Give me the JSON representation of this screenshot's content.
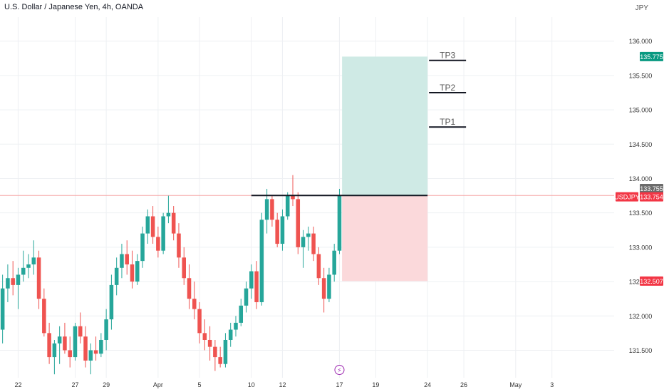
{
  "header": {
    "title": "U.S. Dollar / Japanese Yen, 4h, OANDA",
    "currency": "JPY"
  },
  "colors": {
    "up": "#26a69a",
    "down": "#ef5350",
    "grid": "#eef0f3",
    "text": "#333333",
    "price_line": "#f5a5a5",
    "profit_zone": "#cfeae5",
    "loss_zone": "#fbd9db",
    "tp_tag": "#089981",
    "sl_tag": "#f23645",
    "price_tag": "#f23645",
    "mark_tag": "#6b6b6b",
    "event_icon": "#9c27b0"
  },
  "chart_data": {
    "type": "candlestick",
    "symbol": "USDJPY",
    "timeframe": "4h",
    "ylim": [
      131.1,
      136.35
    ],
    "y_ticks": [
      131.5,
      132.0,
      132.5,
      133.0,
      133.5,
      134.0,
      134.5,
      135.0,
      135.5,
      136.0
    ],
    "y_tick_labels": [
      "131.500",
      "132.000",
      "132.500",
      "133.000",
      "133.500",
      "134.000",
      "134.500",
      "135.000",
      "135.500",
      "136.000"
    ],
    "x_ticks": [
      {
        "label": "22",
        "bar": 3
      },
      {
        "label": "27",
        "bar": 14
      },
      {
        "label": "29",
        "bar": 20
      },
      {
        "label": "Apr",
        "bar": 30
      },
      {
        "label": "5",
        "bar": 38
      },
      {
        "label": "10",
        "bar": 48
      },
      {
        "label": "12",
        "bar": 54
      },
      {
        "label": "17",
        "bar": 65
      },
      {
        "label": "19",
        "bar": 72
      },
      {
        "label": "24",
        "bar": 82
      },
      {
        "label": "26",
        "bar": 89
      },
      {
        "label": "May",
        "bar": 99
      },
      {
        "label": "3",
        "bar": 106
      }
    ],
    "x_bar_range": [
      -0.5,
      118
    ],
    "candles": [
      [
        131.8,
        132.6,
        131.6,
        132.4
      ],
      [
        132.4,
        132.75,
        132.2,
        132.55
      ],
      [
        132.55,
        132.8,
        132.3,
        132.45
      ],
      [
        132.45,
        132.7,
        132.1,
        132.6
      ],
      [
        132.6,
        132.95,
        132.5,
        132.7
      ],
      [
        132.7,
        132.9,
        132.55,
        132.75
      ],
      [
        132.75,
        133.1,
        132.6,
        132.85
      ],
      [
        132.85,
        132.95,
        132.1,
        132.25
      ],
      [
        132.25,
        132.4,
        131.7,
        131.75
      ],
      [
        131.75,
        131.9,
        131.3,
        131.4
      ],
      [
        131.4,
        131.65,
        131.15,
        131.6
      ],
      [
        131.6,
        131.85,
        131.3,
        131.7
      ],
      [
        131.7,
        131.9,
        131.45,
        131.5
      ],
      [
        131.5,
        131.7,
        131.25,
        131.4
      ],
      [
        131.4,
        131.9,
        131.35,
        131.85
      ],
      [
        131.85,
        132.05,
        131.6,
        131.7
      ],
      [
        131.7,
        131.85,
        131.25,
        131.35
      ],
      [
        131.35,
        131.6,
        131.15,
        131.5
      ],
      [
        131.5,
        131.7,
        131.35,
        131.45
      ],
      [
        131.45,
        131.75,
        131.4,
        131.65
      ],
      [
        131.65,
        132.1,
        131.5,
        131.95
      ],
      [
        131.95,
        132.6,
        131.8,
        132.45
      ],
      [
        132.45,
        132.85,
        132.3,
        132.7
      ],
      [
        132.7,
        133.05,
        132.55,
        132.9
      ],
      [
        132.9,
        133.1,
        132.6,
        132.75
      ],
      [
        132.75,
        132.95,
        132.4,
        132.5
      ],
      [
        132.5,
        132.9,
        132.45,
        132.8
      ],
      [
        132.8,
        133.3,
        132.7,
        133.2
      ],
      [
        133.2,
        133.55,
        133.05,
        133.45
      ],
      [
        133.45,
        133.6,
        133.05,
        133.15
      ],
      [
        133.15,
        133.3,
        132.85,
        132.95
      ],
      [
        132.95,
        133.5,
        132.9,
        133.45
      ],
      [
        133.45,
        133.75,
        133.35,
        133.5
      ],
      [
        133.5,
        133.6,
        133.1,
        133.2
      ],
      [
        133.2,
        133.35,
        132.7,
        132.85
      ],
      [
        132.85,
        133.0,
        132.45,
        132.55
      ],
      [
        132.55,
        132.75,
        132.1,
        132.25
      ],
      [
        132.25,
        132.5,
        131.95,
        132.1
      ],
      [
        132.1,
        132.2,
        131.6,
        131.75
      ],
      [
        131.75,
        131.95,
        131.5,
        131.65
      ],
      [
        131.65,
        131.85,
        131.35,
        131.55
      ],
      [
        131.55,
        131.65,
        131.2,
        131.4
      ],
      [
        131.4,
        131.55,
        131.25,
        131.3
      ],
      [
        131.3,
        131.75,
        131.25,
        131.65
      ],
      [
        131.65,
        131.9,
        131.55,
        131.8
      ],
      [
        131.8,
        132.0,
        131.7,
        131.9
      ],
      [
        131.9,
        132.25,
        131.85,
        132.15
      ],
      [
        132.15,
        132.5,
        132.05,
        132.4
      ],
      [
        132.4,
        132.75,
        132.25,
        132.65
      ],
      [
        132.65,
        132.8,
        132.1,
        132.2
      ],
      [
        132.2,
        133.5,
        132.15,
        133.4
      ],
      [
        133.4,
        133.85,
        133.2,
        133.7
      ],
      [
        133.7,
        133.75,
        133.3,
        133.4
      ],
      [
        133.4,
        133.5,
        133.0,
        133.05
      ],
      [
        133.05,
        133.55,
        132.95,
        133.45
      ],
      [
        133.45,
        133.8,
        133.4,
        133.75
      ],
      [
        133.75,
        134.05,
        133.6,
        133.7
      ],
      [
        133.7,
        133.8,
        132.9,
        133.0
      ],
      [
        133.0,
        133.25,
        132.7,
        133.15
      ],
      [
        133.15,
        133.3,
        132.95,
        133.2
      ],
      [
        133.2,
        133.3,
        132.8,
        132.9
      ],
      [
        132.9,
        133.0,
        132.45,
        132.55
      ],
      [
        132.55,
        132.7,
        132.05,
        132.25
      ],
      [
        132.25,
        132.7,
        132.2,
        132.6
      ],
      [
        132.6,
        133.05,
        132.5,
        132.95
      ],
      [
        132.95,
        133.85,
        132.9,
        133.75
      ]
    ],
    "horizontal_line": {
      "price": 133.754,
      "start_bar": 48,
      "end_bar": 82
    },
    "position": {
      "entry": 133.755,
      "target": 135.775,
      "stop": 132.507,
      "start_bar": 66,
      "end_bar": 82
    },
    "take_profits": [
      {
        "label": "TP1",
        "price": 134.75
      },
      {
        "label": "TP2",
        "price": 135.25
      },
      {
        "label": "TP3",
        "price": 135.72
      }
    ],
    "price_tags": {
      "target": "135.775",
      "entry": "133.755",
      "symbol": "USDJPY",
      "last": "133.754",
      "stop": "132.507"
    },
    "event_icon": {
      "bar": 65,
      "symbol": "⚡"
    }
  }
}
